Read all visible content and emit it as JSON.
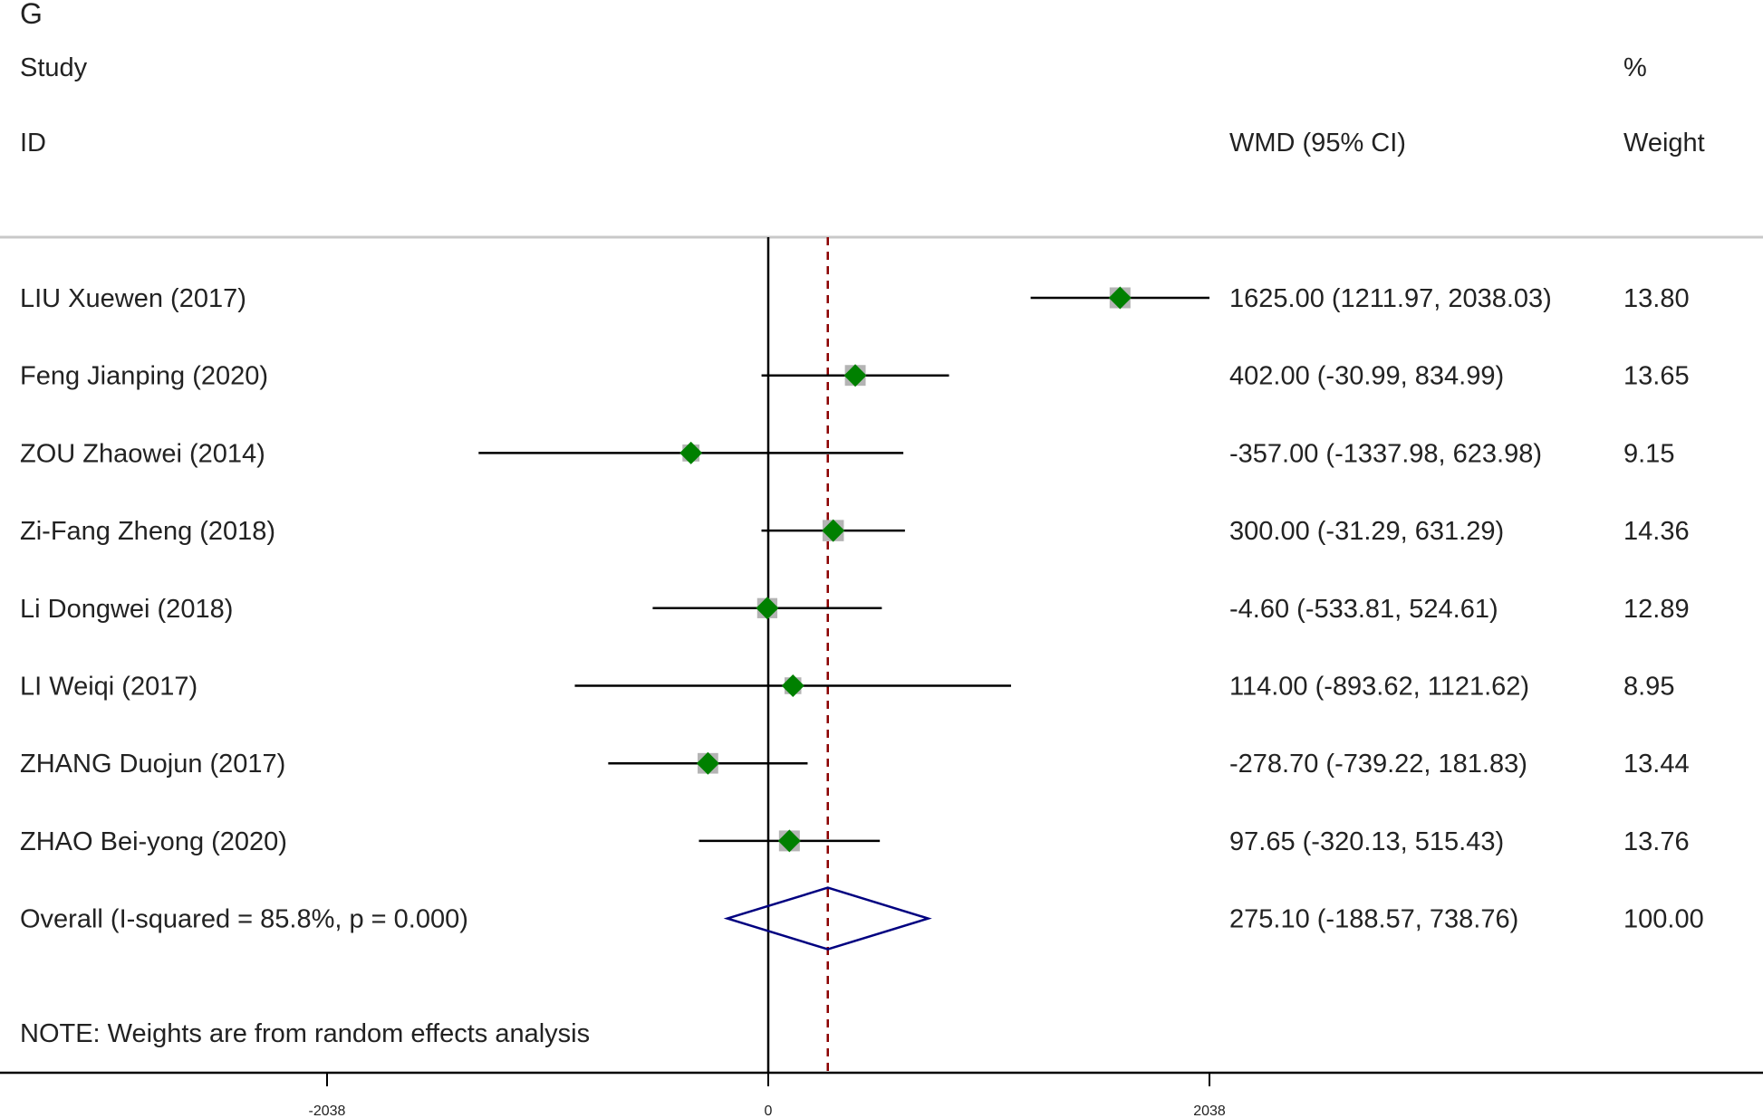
{
  "chart_data": {
    "type": "forest",
    "panel_label": "G",
    "header": {
      "study_col_line1": "Study",
      "study_col_line2": "ID",
      "effect_col": "WMD (95% CI)",
      "weight_col_line1": "%",
      "weight_col_line2": "Weight"
    },
    "studies": [
      {
        "id": "LIU Xuewen (2017)",
        "wmd": 1625.0,
        "lower": 1211.97,
        "upper": 2038.03,
        "ci_text": "1625.00 (1211.97, 2038.03)",
        "weight": 13.8,
        "weight_text": "13.80"
      },
      {
        "id": "Feng Jianping  (2020)",
        "wmd": 402.0,
        "lower": -30.99,
        "upper": 834.99,
        "ci_text": "402.00 (-30.99, 834.99)",
        "weight": 13.65,
        "weight_text": "13.65"
      },
      {
        "id": "ZOU Zhaowei (2014)",
        "wmd": -357.0,
        "lower": -1337.98,
        "upper": 623.98,
        "ci_text": "-357.00 (-1337.98, 623.98)",
        "weight": 9.15,
        "weight_text": "9.15"
      },
      {
        "id": "Zi-Fang Zheng (2018)",
        "wmd": 300.0,
        "lower": -31.29,
        "upper": 631.29,
        "ci_text": "300.00 (-31.29, 631.29)",
        "weight": 14.36,
        "weight_text": "14.36"
      },
      {
        "id": "Li Dongwei (2018)",
        "wmd": -4.6,
        "lower": -533.81,
        "upper": 524.61,
        "ci_text": "-4.60 (-533.81, 524.61)",
        "weight": 12.89,
        "weight_text": "12.89"
      },
      {
        "id": "LI Weiqi (2017)",
        "wmd": 114.0,
        "lower": -893.62,
        "upper": 1121.62,
        "ci_text": "114.00 (-893.62, 1121.62)",
        "weight": 8.95,
        "weight_text": "8.95"
      },
      {
        "id": "ZHANG Duojun (2017)",
        "wmd": -278.7,
        "lower": -739.22,
        "upper": 181.83,
        "ci_text": "-278.70 (-739.22, 181.83)",
        "weight": 13.44,
        "weight_text": "13.44"
      },
      {
        "id": "ZHAO Bei-yong (2020)",
        "wmd": 97.65,
        "lower": -320.13,
        "upper": 515.43,
        "ci_text": "97.65 (-320.13, 515.43)",
        "weight": 13.76,
        "weight_text": "13.76"
      }
    ],
    "overall": {
      "label": "Overall  (I-squared = 85.8%, p = 0.000)",
      "wmd": 275.1,
      "lower": -188.57,
      "upper": 738.76,
      "ci_text": "275.10 (-188.57, 738.76)",
      "weight_text": "100.00"
    },
    "note": "NOTE: Weights are from random effects analysis",
    "x_axis": {
      "range": [
        -3550,
        4540
      ],
      "ticks": [
        {
          "value": -2038,
          "label": "-2038"
        },
        {
          "value": 0,
          "label": "0"
        },
        {
          "value": 2038,
          "label": "2038"
        }
      ],
      "null_line": 0,
      "pooled_line": 275.1
    },
    "colors": {
      "point": "#008000",
      "weight_box": "#b4b4b4",
      "ci_line": "#000000",
      "pooled_line": "#8b0000",
      "diamond": "#000080",
      "rule": "#c8c8c8"
    }
  }
}
